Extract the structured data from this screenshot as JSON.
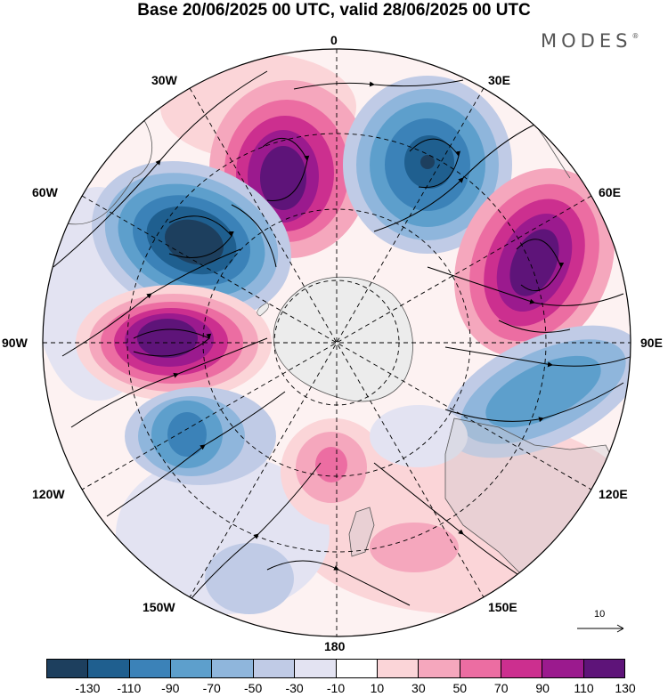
{
  "title": "Base 20/06/2025 00 UTC, valid 28/06/2025 00 UTC",
  "brand": "MODES",
  "brand_mark": "®",
  "map": {
    "projection": "south-polar-stereographic",
    "longitude_labels": {
      "top": "0",
      "top_right": "30E",
      "right_upper": "60E",
      "right": "90E",
      "right_lower": "120E",
      "bottom_right": "150E",
      "bottom": "180",
      "bottom_left": "150W",
      "left_lower": "120W",
      "left": "90W",
      "left_upper": "60W",
      "top_left": "30W"
    },
    "vector_reference": "10"
  },
  "colorbar": {
    "ticks": [
      "-130",
      "-110",
      "-90",
      "-70",
      "-50",
      "-30",
      "-10",
      "10",
      "30",
      "50",
      "70",
      "90",
      "110",
      "130"
    ],
    "colors": [
      "#1d3f5e",
      "#1f5f8f",
      "#3b82b8",
      "#5d9fcc",
      "#8fb6dc",
      "#c0cbe6",
      "#e3e3f2",
      "#ffffff",
      "#fbd5d8",
      "#f5a7bd",
      "#ec6da2",
      "#cc2f8f",
      "#9b1a8e",
      "#5e1479"
    ],
    "color_names": [
      "navy",
      "dark blue",
      "blue",
      "medium blue",
      "light blue",
      "pale blue",
      "lavender",
      "white",
      "pale pink",
      "light pink",
      "pink",
      "magenta",
      "purple",
      "dark purple"
    ]
  }
}
